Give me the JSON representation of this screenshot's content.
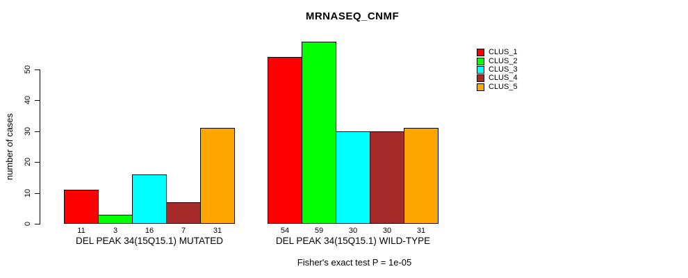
{
  "chart_data": {
    "type": "bar",
    "title": "MRNASEQ_CNMF",
    "ylabel": "number of cases",
    "ylim": [
      0,
      50
    ],
    "yticks": [
      0,
      10,
      20,
      30,
      40,
      50
    ],
    "grid": false,
    "legend_position": "right",
    "categories": [
      "DEL PEAK 34(15Q15.1) MUTATED",
      "DEL PEAK 34(15Q15.1) WILD-TYPE"
    ],
    "series": [
      {
        "name": "CLUS_1",
        "color": "#ff0000",
        "values": [
          11,
          54
        ]
      },
      {
        "name": "CLUS_2",
        "color": "#00ff00",
        "values": [
          3,
          59
        ]
      },
      {
        "name": "CLUS_3",
        "color": "#00ffff",
        "values": [
          16,
          30
        ]
      },
      {
        "name": "CLUS_4",
        "color": "#a52a2a",
        "values": [
          7,
          30
        ]
      },
      {
        "name": "CLUS_5",
        "color": "#ffa500",
        "values": [
          31,
          31
        ]
      }
    ],
    "bar_value_labels": [
      [
        11,
        3,
        16,
        7,
        31
      ],
      [
        54,
        59,
        30,
        30,
        31
      ]
    ],
    "annotation": "Fisher's exact test P = 1e-05"
  }
}
